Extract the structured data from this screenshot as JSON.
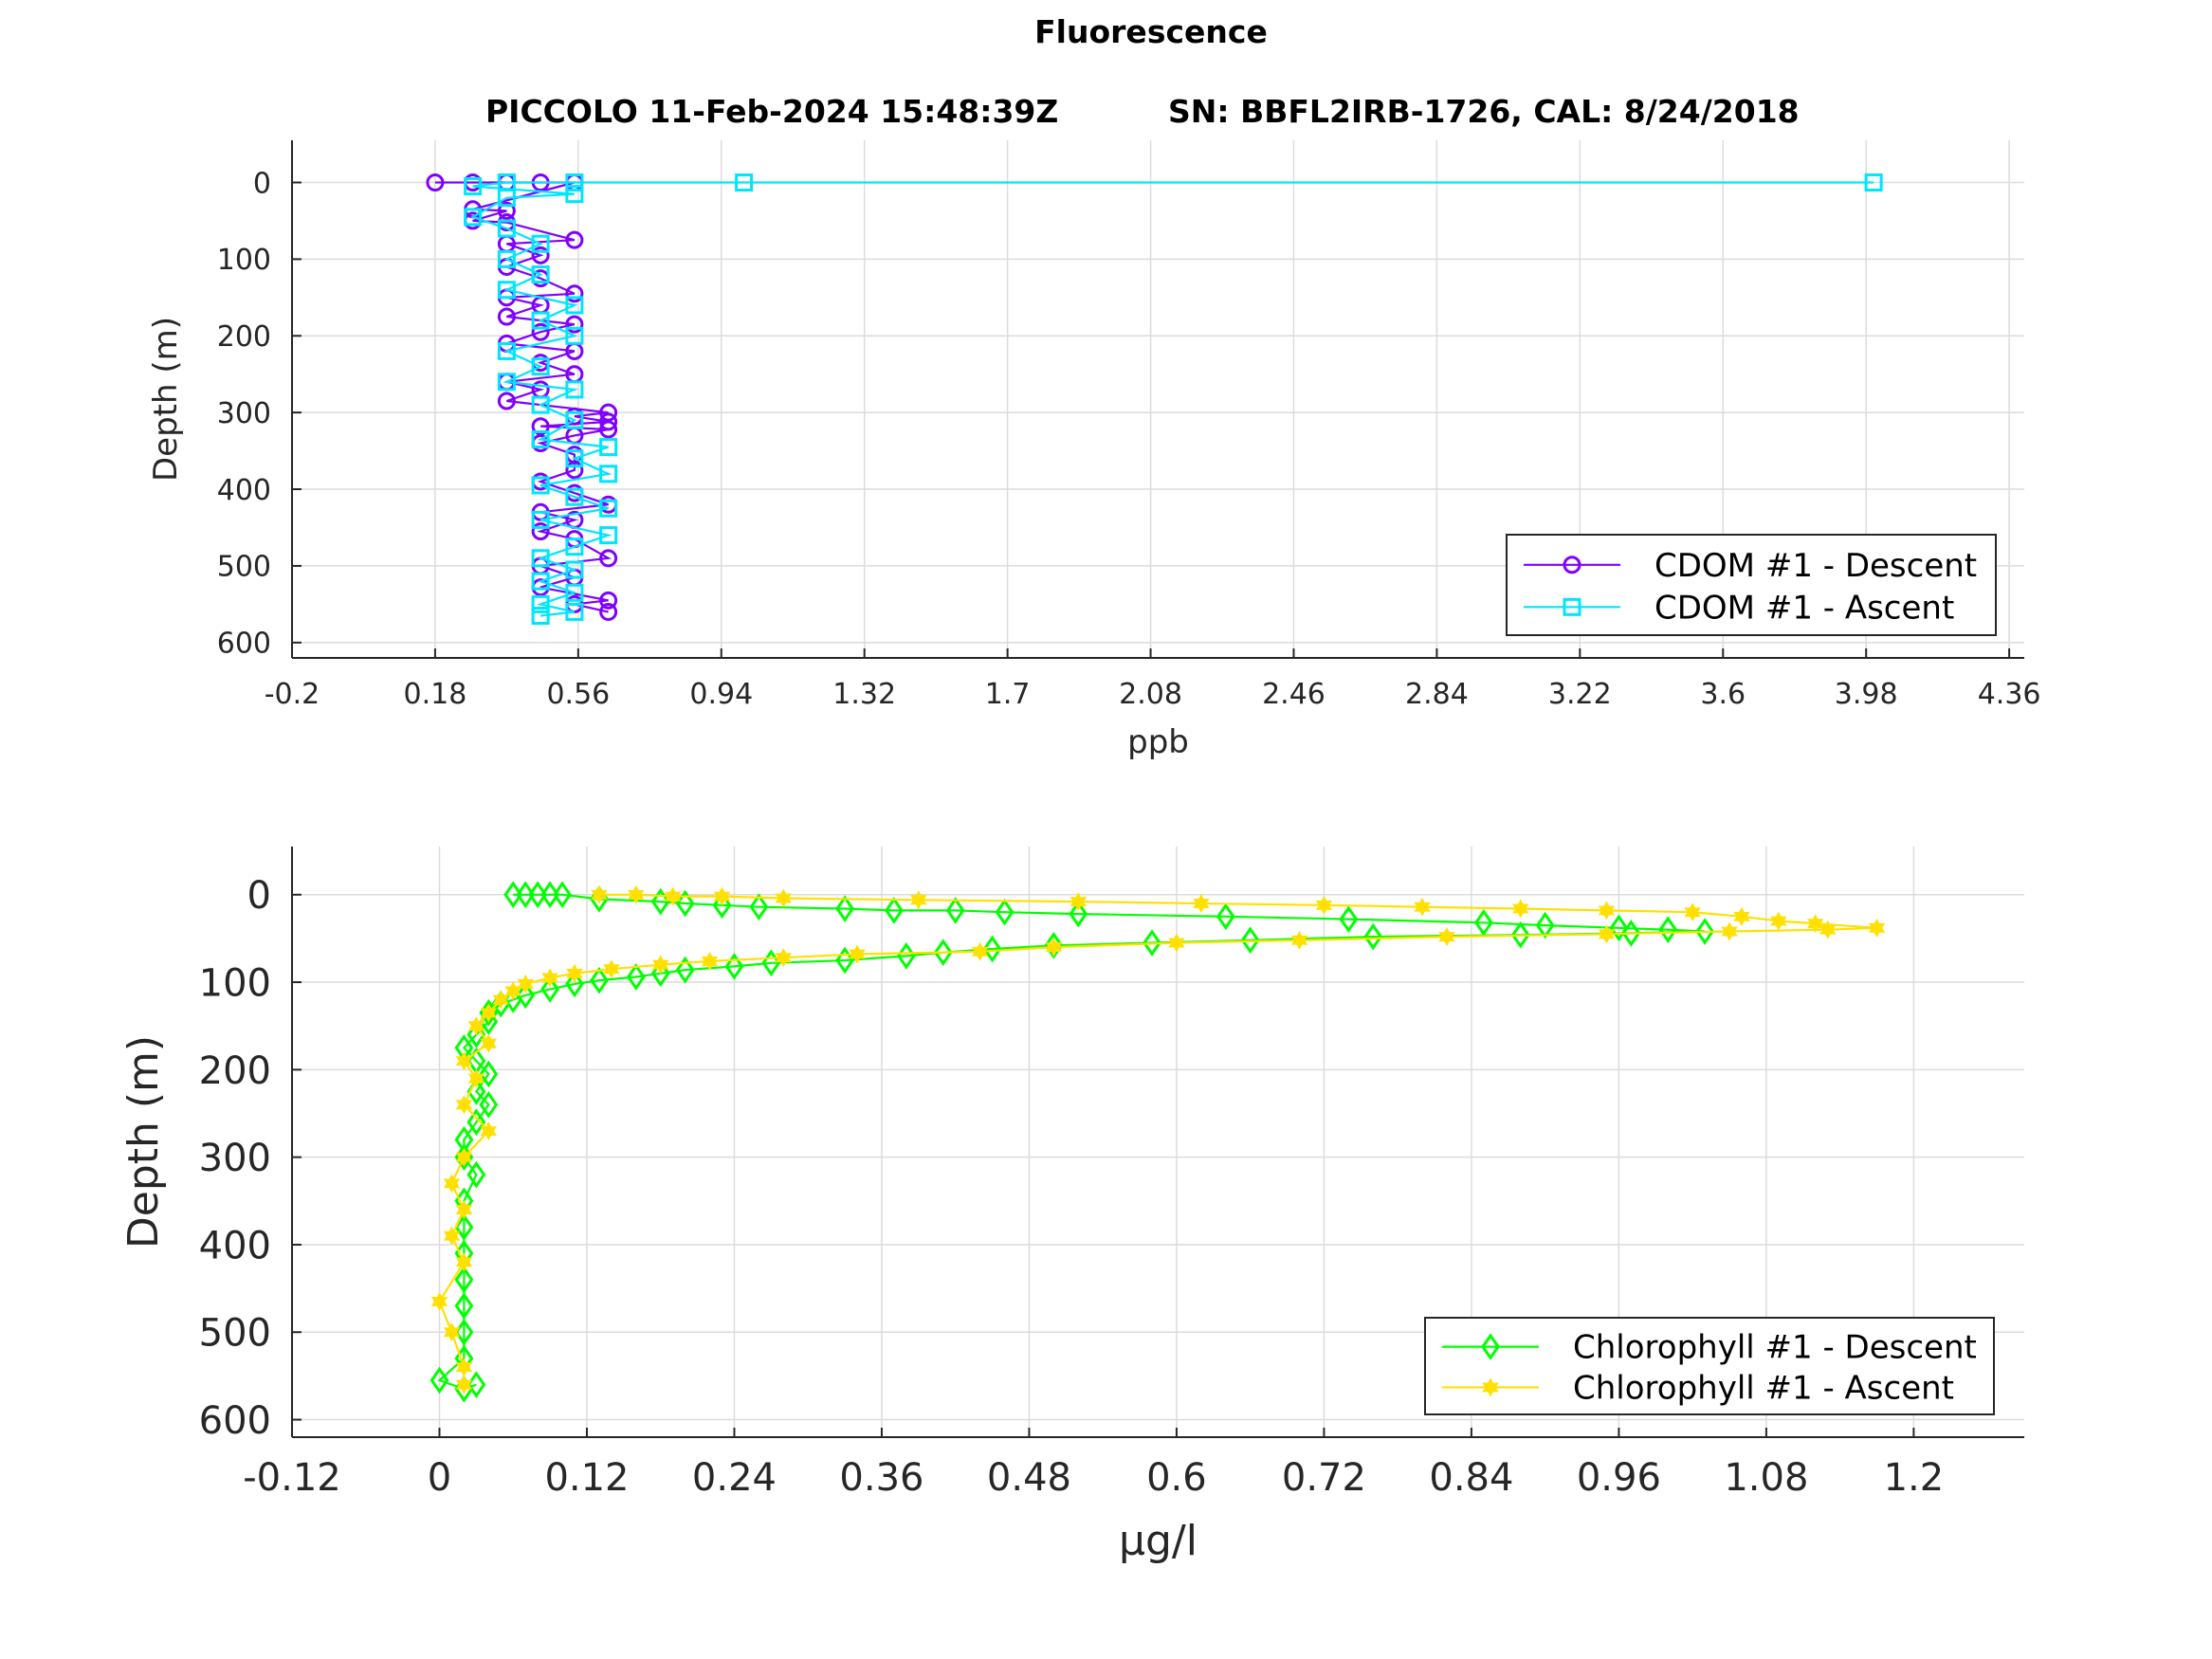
{
  "figure": {
    "title": "Fluorescence",
    "subtitle_left": "PICCOLO 11-Feb-2024 15:48:39Z",
    "subtitle_right": "SN: BBFL2IRB-1726, CAL: 8/24/2018"
  },
  "colors": {
    "cdom_descent": "#8000ff",
    "cdom_ascent": "#00e5ff",
    "chl_descent": "#00ff00",
    "chl_ascent": "#ffe000",
    "grid": "#dcdcdc",
    "axis": "#262626"
  },
  "chart_data": [
    {
      "type": "scatter",
      "xlabel": "ppb",
      "ylabel": "Depth (m)",
      "xlim": [
        -0.2,
        4.4
      ],
      "ylim": [
        -55,
        620
      ],
      "y_reversed": true,
      "grid": true,
      "legend_position": "bottom-right",
      "xticks": [
        "-0.2",
        "0.18",
        "0.56",
        "0.94",
        "1.32",
        "1.7",
        "2.08",
        "2.46",
        "2.84",
        "3.22",
        "3.6",
        "3.98",
        "4.36"
      ],
      "yticks": [
        "0",
        "100",
        "200",
        "300",
        "400",
        "500",
        "600"
      ],
      "series": [
        {
          "name": "CDOM #1 - Descent",
          "marker": "circle",
          "color_key": "cdom_descent",
          "points": [
            [
              0.18,
              0
            ],
            [
              0.28,
              0
            ],
            [
              0.37,
              0
            ],
            [
              0.46,
              0
            ],
            [
              0.55,
              0
            ],
            [
              0.28,
              35
            ],
            [
              0.37,
              37
            ],
            [
              0.28,
              50
            ],
            [
              0.37,
              52
            ],
            [
              0.55,
              75
            ],
            [
              0.37,
              80
            ],
            [
              0.46,
              95
            ],
            [
              0.37,
              110
            ],
            [
              0.46,
              125
            ],
            [
              0.55,
              145
            ],
            [
              0.37,
              150
            ],
            [
              0.46,
              160
            ],
            [
              0.37,
              175
            ],
            [
              0.55,
              185
            ],
            [
              0.46,
              195
            ],
            [
              0.37,
              210
            ],
            [
              0.55,
              220
            ],
            [
              0.46,
              235
            ],
            [
              0.55,
              250
            ],
            [
              0.37,
              260
            ],
            [
              0.46,
              270
            ],
            [
              0.37,
              285
            ],
            [
              0.64,
              300
            ],
            [
              0.55,
              305
            ],
            [
              0.64,
              312
            ],
            [
              0.46,
              318
            ],
            [
              0.64,
              322
            ],
            [
              0.55,
              330
            ],
            [
              0.46,
              340
            ],
            [
              0.55,
              355
            ],
            [
              0.55,
              375
            ],
            [
              0.46,
              390
            ],
            [
              0.55,
              405
            ],
            [
              0.64,
              420
            ],
            [
              0.46,
              430
            ],
            [
              0.55,
              440
            ],
            [
              0.46,
              455
            ],
            [
              0.55,
              465
            ],
            [
              0.64,
              490
            ],
            [
              0.46,
              500
            ],
            [
              0.55,
              515
            ],
            [
              0.46,
              528
            ],
            [
              0.64,
              545
            ],
            [
              0.55,
              550
            ],
            [
              0.64,
              560
            ]
          ]
        },
        {
          "name": "CDOM #1 - Ascent",
          "marker": "square",
          "color_key": "cdom_ascent",
          "points": [
            [
              4.0,
              0
            ],
            [
              1.0,
              0
            ],
            [
              0.55,
              0
            ],
            [
              0.37,
              0
            ],
            [
              0.28,
              5
            ],
            [
              0.55,
              15
            ],
            [
              0.37,
              20
            ],
            [
              0.28,
              45
            ],
            [
              0.37,
              60
            ],
            [
              0.46,
              80
            ],
            [
              0.37,
              100
            ],
            [
              0.46,
              120
            ],
            [
              0.37,
              140
            ],
            [
              0.55,
              160
            ],
            [
              0.46,
              180
            ],
            [
              0.55,
              200
            ],
            [
              0.37,
              220
            ],
            [
              0.46,
              240
            ],
            [
              0.37,
              260
            ],
            [
              0.55,
              270
            ],
            [
              0.46,
              290
            ],
            [
              0.55,
              310
            ],
            [
              0.46,
              335
            ],
            [
              0.64,
              345
            ],
            [
              0.55,
              360
            ],
            [
              0.64,
              380
            ],
            [
              0.46,
              395
            ],
            [
              0.55,
              410
            ],
            [
              0.64,
              425
            ],
            [
              0.46,
              440
            ],
            [
              0.64,
              460
            ],
            [
              0.55,
              475
            ],
            [
              0.46,
              490
            ],
            [
              0.55,
              505
            ],
            [
              0.46,
              520
            ],
            [
              0.55,
              535
            ],
            [
              0.46,
              550
            ],
            [
              0.55,
              560
            ],
            [
              0.46,
              565
            ]
          ]
        }
      ]
    },
    {
      "type": "scatter",
      "xlabel": "μg/l",
      "ylabel": "Depth (m)",
      "xlim": [
        -0.12,
        1.29
      ],
      "ylim": [
        -55,
        620
      ],
      "y_reversed": true,
      "grid": true,
      "legend_position": "bottom-right",
      "xticks": [
        "-0.12",
        "0",
        "0.12",
        "0.24",
        "0.36",
        "0.48",
        "0.6",
        "0.72",
        "0.84",
        "0.96",
        "1.08",
        "1.2"
      ],
      "yticks": [
        "0",
        "100",
        "200",
        "300",
        "400",
        "500",
        "600"
      ],
      "series": [
        {
          "name": "Chlorophyll #1 - Descent",
          "marker": "diamond",
          "color_key": "chl_descent",
          "points": [
            [
              0.06,
              0
            ],
            [
              0.07,
              0
            ],
            [
              0.08,
              0
            ],
            [
              0.09,
              0
            ],
            [
              0.1,
              0
            ],
            [
              0.13,
              5
            ],
            [
              0.18,
              8
            ],
            [
              0.2,
              10
            ],
            [
              0.23,
              12
            ],
            [
              0.26,
              14
            ],
            [
              0.33,
              16
            ],
            [
              0.37,
              18
            ],
            [
              0.42,
              18
            ],
            [
              0.46,
              20
            ],
            [
              0.52,
              22
            ],
            [
              0.64,
              25
            ],
            [
              0.74,
              28
            ],
            [
              0.85,
              32
            ],
            [
              0.9,
              35
            ],
            [
              0.96,
              38
            ],
            [
              1.0,
              40
            ],
            [
              1.03,
              42
            ],
            [
              0.97,
              44
            ],
            [
              0.88,
              46
            ],
            [
              0.76,
              48
            ],
            [
              0.66,
              52
            ],
            [
              0.58,
              55
            ],
            [
              0.5,
              58
            ],
            [
              0.45,
              62
            ],
            [
              0.41,
              66
            ],
            [
              0.38,
              70
            ],
            [
              0.33,
              75
            ],
            [
              0.27,
              78
            ],
            [
              0.24,
              82
            ],
            [
              0.2,
              86
            ],
            [
              0.18,
              90
            ],
            [
              0.16,
              94
            ],
            [
              0.13,
              98
            ],
            [
              0.11,
              102
            ],
            [
              0.09,
              108
            ],
            [
              0.07,
              115
            ],
            [
              0.06,
              120
            ],
            [
              0.05,
              125
            ],
            [
              0.04,
              135
            ],
            [
              0.04,
              145
            ],
            [
              0.03,
              160
            ],
            [
              0.02,
              175
            ],
            [
              0.03,
              190
            ],
            [
              0.04,
              205
            ],
            [
              0.03,
              225
            ],
            [
              0.04,
              240
            ],
            [
              0.03,
              260
            ],
            [
              0.02,
              280
            ],
            [
              0.02,
              300
            ],
            [
              0.03,
              320
            ],
            [
              0.02,
              350
            ],
            [
              0.02,
              380
            ],
            [
              0.02,
              410
            ],
            [
              0.02,
              440
            ],
            [
              0.02,
              470
            ],
            [
              0.02,
              500
            ],
            [
              0.02,
              530
            ],
            [
              0.0,
              555
            ],
            [
              0.02,
              565
            ],
            [
              0.03,
              560
            ]
          ]
        },
        {
          "name": "Chlorophyll #1 - Ascent",
          "marker": "star",
          "color_key": "chl_ascent",
          "points": [
            [
              0.13,
              0
            ],
            [
              0.16,
              0
            ],
            [
              0.19,
              2
            ],
            [
              0.23,
              2
            ],
            [
              0.28,
              4
            ],
            [
              0.39,
              6
            ],
            [
              0.52,
              8
            ],
            [
              0.62,
              10
            ],
            [
              0.72,
              12
            ],
            [
              0.8,
              14
            ],
            [
              0.88,
              16
            ],
            [
              0.95,
              18
            ],
            [
              1.02,
              20
            ],
            [
              1.06,
              25
            ],
            [
              1.09,
              30
            ],
            [
              1.12,
              33
            ],
            [
              1.17,
              38
            ],
            [
              1.13,
              40
            ],
            [
              1.05,
              42
            ],
            [
              0.95,
              45
            ],
            [
              0.82,
              48
            ],
            [
              0.7,
              52
            ],
            [
              0.6,
              55
            ],
            [
              0.5,
              60
            ],
            [
              0.44,
              65
            ],
            [
              0.34,
              68
            ],
            [
              0.28,
              72
            ],
            [
              0.22,
              76
            ],
            [
              0.18,
              80
            ],
            [
              0.14,
              85
            ],
            [
              0.11,
              90
            ],
            [
              0.09,
              95
            ],
            [
              0.07,
              102
            ],
            [
              0.06,
              110
            ],
            [
              0.05,
              120
            ],
            [
              0.04,
              135
            ],
            [
              0.03,
              150
            ],
            [
              0.04,
              170
            ],
            [
              0.02,
              190
            ],
            [
              0.03,
              210
            ],
            [
              0.02,
              240
            ],
            [
              0.04,
              270
            ],
            [
              0.02,
              300
            ],
            [
              0.01,
              330
            ],
            [
              0.02,
              360
            ],
            [
              0.01,
              390
            ],
            [
              0.02,
              420
            ],
            [
              0.0,
              465
            ],
            [
              0.01,
              500
            ],
            [
              0.02,
              540
            ],
            [
              0.02,
              560
            ]
          ]
        }
      ]
    }
  ]
}
